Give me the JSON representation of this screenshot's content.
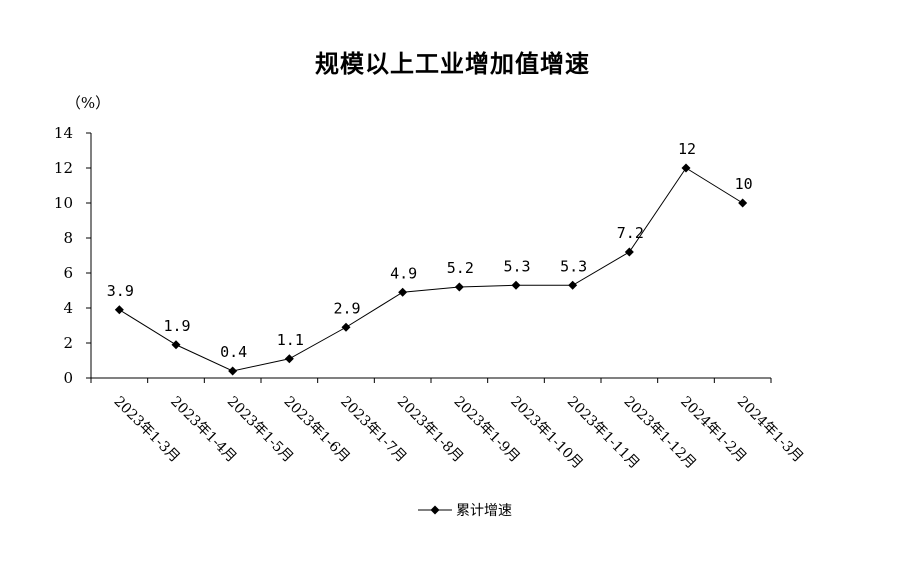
{
  "chart_data": {
    "type": "line",
    "title": "规模以上工业增加值增速",
    "ylabel": "（%）",
    "xlabel": "",
    "ylim": [
      0,
      14
    ],
    "yticks": [
      0,
      2,
      4,
      6,
      8,
      10,
      12,
      14
    ],
    "categories": [
      "2023年1-3月",
      "2023年1-4月",
      "2023年1-5月",
      "2023年1-6月",
      "2023年1-7月",
      "2023年1-8月",
      "2023年1-9月",
      "2023年1-10月",
      "2023年1-11月",
      "2023年1-12月",
      "2024年1-2月",
      "2024年1-3月"
    ],
    "series": [
      {
        "name": "累计增速",
        "values": [
          3.9,
          1.9,
          0.4,
          1.1,
          2.9,
          4.9,
          5.2,
          5.3,
          5.3,
          7.2,
          12,
          10
        ],
        "labels": [
          "3.9",
          "1.9",
          "0.4",
          "1.1",
          "2.9",
          "4.9",
          "5.2",
          "5.3",
          "5.3",
          "7.2",
          "12",
          "10"
        ],
        "color": "#000000",
        "marker": "diamond"
      }
    ],
    "grid": false,
    "legend": "bottom-center"
  }
}
